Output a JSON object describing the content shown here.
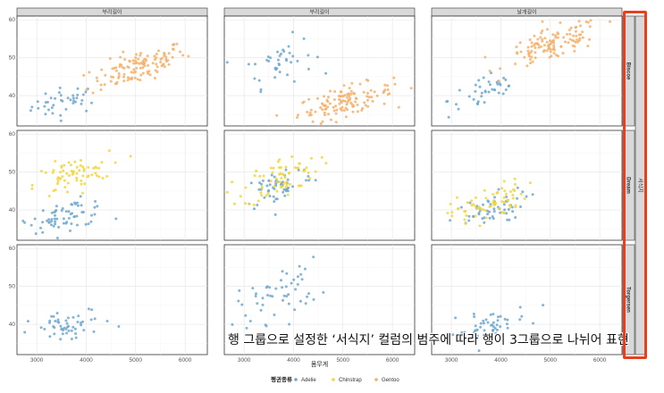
{
  "chart_data": {
    "type": "scatter",
    "facet_layout": "grid 3x3",
    "column_strips": [
      "부리길이",
      "부리길이",
      "날개길이"
    ],
    "row_strips": [
      "Biscoe",
      "Dream",
      "Torgersen"
    ],
    "row_group_title": "서식지",
    "xlabel": "몸무게",
    "ylabel": "",
    "x_ticks": [
      3000,
      4000,
      5000,
      6000
    ],
    "xlim": [
      2600,
      6450
    ],
    "y_ticks": [
      40,
      50,
      60
    ],
    "ylim": [
      32,
      61
    ],
    "grid": true,
    "legend": {
      "title": "펭귄종류",
      "placement": "bottom",
      "entries": [
        "Adelie",
        "Chinstrap",
        "Gentoo"
      ]
    },
    "series_colors": {
      "Adelie": "#6fa8cf",
      "Chinstrap": "#f2d63c",
      "Gentoo": "#f5b06a"
    },
    "annotation": "행 그룹으로 설정한 ‘서식지’ 컬럼의 범주에 따라 행이 3그룹으로 나뉘어 표현",
    "clusters": [
      {
        "row": 0,
        "col": 0,
        "series": "Adelie",
        "cx": 3600,
        "cy": 38.5,
        "sx": 350,
        "sy": 2.5,
        "n": 40,
        "slope": 0.002
      },
      {
        "row": 0,
        "col": 0,
        "series": "Gentoo",
        "cx": 5050,
        "cy": 47.5,
        "sx": 480,
        "sy": 2.8,
        "n": 120,
        "slope": 0.004
      },
      {
        "row": 0,
        "col": 1,
        "series": "Adelie",
        "cx": 3700,
        "cy": 49,
        "sx": 350,
        "sy": 4,
        "n": 40,
        "slope": 0.003
      },
      {
        "row": 0,
        "col": 1,
        "series": "Gentoo",
        "cx": 5050,
        "cy": 38.5,
        "sx": 480,
        "sy": 2.5,
        "n": 120,
        "slope": 0.003
      },
      {
        "row": 0,
        "col": 2,
        "series": "Adelie",
        "cx": 3700,
        "cy": 41,
        "sx": 380,
        "sy": 3.2,
        "n": 40,
        "slope": 0.003
      },
      {
        "row": 0,
        "col": 2,
        "series": "Gentoo",
        "cx": 5050,
        "cy": 53.5,
        "sx": 480,
        "sy": 2.8,
        "n": 120,
        "slope": 0.004
      },
      {
        "row": 1,
        "col": 0,
        "series": "Adelie",
        "cx": 3650,
        "cy": 38.8,
        "sx": 400,
        "sy": 2.4,
        "n": 55,
        "slope": 0.002
      },
      {
        "row": 1,
        "col": 0,
        "series": "Chinstrap",
        "cx": 3700,
        "cy": 48.8,
        "sx": 380,
        "sy": 3,
        "n": 68,
        "slope": 0.003
      },
      {
        "row": 1,
        "col": 0,
        "series": "Adelie",
        "cx": 3300,
        "cy": 36.8,
        "sx": 200,
        "sy": 1,
        "n": 10,
        "slope": 0.0
      },
      {
        "row": 1,
        "col": 1,
        "series": "Adelie",
        "cx": 3700,
        "cy": 46.5,
        "sx": 350,
        "sy": 3.5,
        "n": 55,
        "slope": 0.004
      },
      {
        "row": 1,
        "col": 1,
        "series": "Chinstrap",
        "cx": 3750,
        "cy": 48.5,
        "sx": 380,
        "sy": 3.5,
        "n": 68,
        "slope": 0.004
      },
      {
        "row": 1,
        "col": 2,
        "series": "Adelie",
        "cx": 3700,
        "cy": 39.5,
        "sx": 400,
        "sy": 2.8,
        "n": 55,
        "slope": 0.004
      },
      {
        "row": 1,
        "col": 2,
        "series": "Chinstrap",
        "cx": 3750,
        "cy": 41.5,
        "sx": 380,
        "sy": 3,
        "n": 68,
        "slope": 0.004
      },
      {
        "row": 2,
        "col": 0,
        "series": "Adelie",
        "cx": 3700,
        "cy": 39.5,
        "sx": 420,
        "sy": 2.8,
        "n": 52,
        "slope": 0.002
      },
      {
        "row": 2,
        "col": 1,
        "series": "Adelie",
        "cx": 3700,
        "cy": 48,
        "sx": 420,
        "sy": 4.5,
        "n": 52,
        "slope": 0.004
      },
      {
        "row": 2,
        "col": 2,
        "series": "Adelie",
        "cx": 3750,
        "cy": 39.5,
        "sx": 420,
        "sy": 2.5,
        "n": 52,
        "slope": 0.003
      }
    ]
  }
}
